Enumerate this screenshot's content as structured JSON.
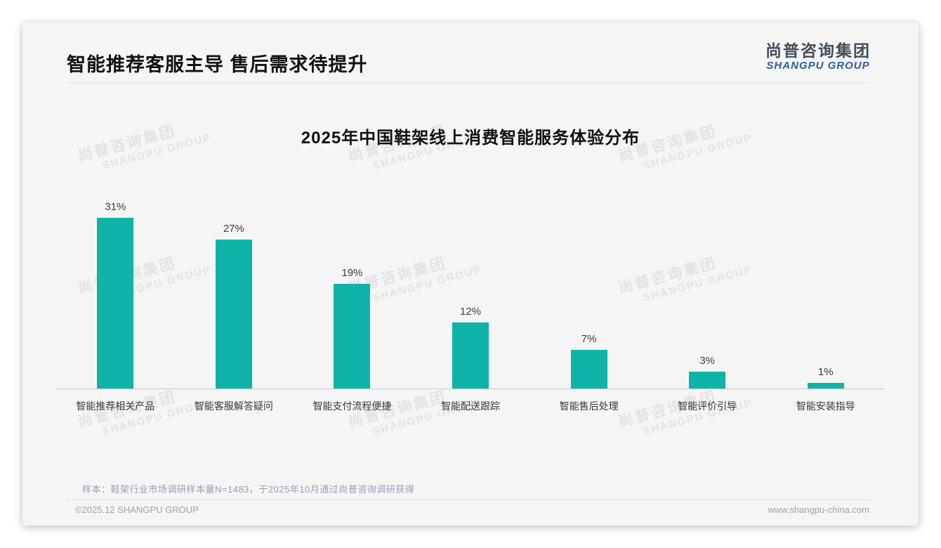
{
  "page": {
    "title": "智能推荐客服主导 售后需求待提升",
    "logo": {
      "cn": "尚普咨询集团",
      "en": "SHANGPU GROUP"
    },
    "watermark": {
      "cn": "尚普咨询集团",
      "en": "SHANGPU GROUP"
    },
    "note": "样本：鞋架行业市场调研样本量N=1483，于2025年10月通过尚普咨询调研获得",
    "footer": {
      "left": "©2025.12 SHANGPU GROUP",
      "right": "www.shangpu-china.com"
    }
  },
  "colors": {
    "bar": "#0fb3a8",
    "logo_cn": "#434e59",
    "logo_en": "#2b5f9e",
    "note": "#97a0b0",
    "card_bg": "#f5f5f6"
  },
  "chart_data": {
    "type": "bar",
    "title": "2025年中国鞋架线上消费智能服务体验分布",
    "categories": [
      "智能推荐相关产品",
      "智能客服解答疑问",
      "智能支付流程便捷",
      "智能配送跟踪",
      "智能售后处理",
      "智能评价引导",
      "智能安装指导"
    ],
    "values": [
      31,
      27,
      19,
      12,
      7,
      3,
      1
    ],
    "unit": "%",
    "value_labels": [
      "31%",
      "27%",
      "19%",
      "12%",
      "7%",
      "3%",
      "1%"
    ],
    "xlabel": "",
    "ylabel": "",
    "ylim": [
      0,
      35
    ],
    "grid": false,
    "legend": false,
    "bar_color": "#0fb3a8"
  }
}
